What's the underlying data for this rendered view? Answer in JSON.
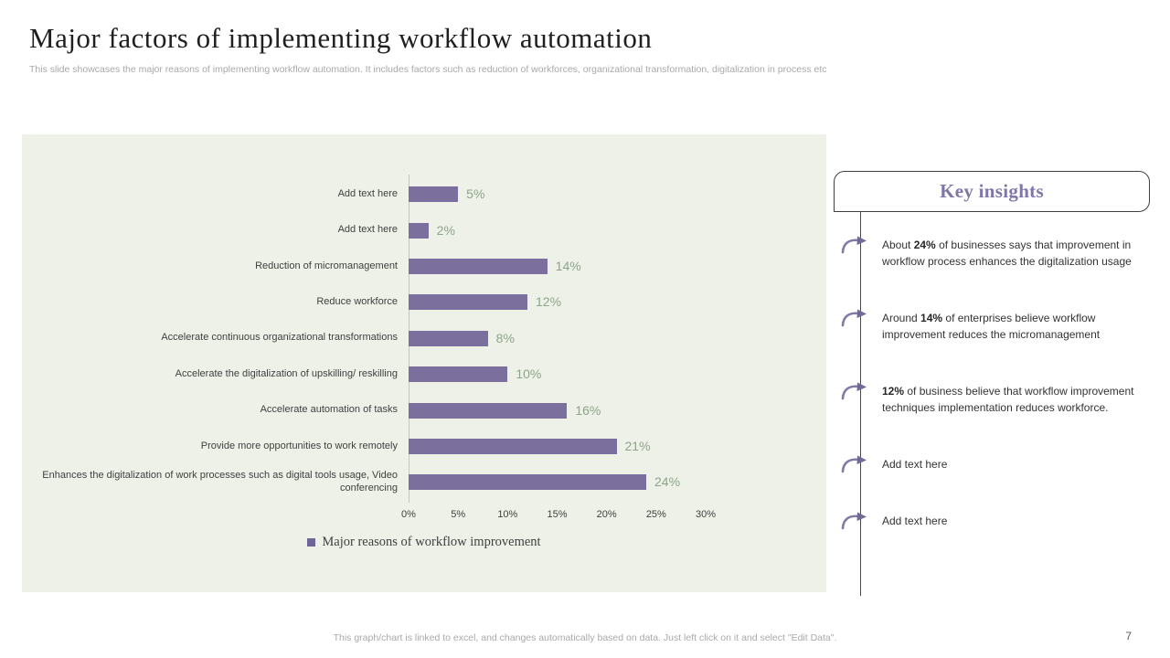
{
  "slide": {
    "title": "Major factors of implementing workflow automation",
    "subtitle": "This slide showcases the major reasons of implementing workflow automation. It includes factors such as reduction of workforces, organizational transformation, digitalization in process etc",
    "footer_note": "This graph/chart is linked to excel, and changes automatically based on data. Just left click on it and select \"Edit Data\".",
    "page_number": "7"
  },
  "chart_data": {
    "type": "bar",
    "orientation": "horizontal",
    "title": "",
    "legend": "Major reasons of workflow improvement",
    "legend_position": "bottom",
    "grid": false,
    "categories": [
      "Add text here",
      "Add text here",
      "Reduction of micromanagement",
      "Reduce workforce",
      "Accelerate continuous organizational transformations",
      "Accelerate the digitalization of upskilling/ reskilling",
      "Accelerate automation of tasks",
      "Provide more opportunities to work remotely",
      "Enhances the digitalization of work processes such as digital tools usage, Video conferencing"
    ],
    "values": [
      5,
      2,
      14,
      12,
      8,
      10,
      16,
      21,
      24
    ],
    "value_labels": [
      "5%",
      "2%",
      "14%",
      "12%",
      "8%",
      "10%",
      "16%",
      "21%",
      "24%"
    ],
    "x_ticks": [
      "0%",
      "5%",
      "10%",
      "15%",
      "20%",
      "25%",
      "30%"
    ],
    "xlim": [
      0,
      30
    ],
    "colors": {
      "bar": "#7b6f9d",
      "legend_swatch": "#6f6697",
      "value_label": "#8da489",
      "panel_background": "#eef1e8",
      "axis_line": "#c4c6bf"
    }
  },
  "key_insights": {
    "title": "Key insights",
    "accent_color": "#8176a8",
    "items": [
      {
        "prefix": "About ",
        "bold": "24%",
        "suffix": " of businesses says that improvement in workflow process enhances the digitalization usage"
      },
      {
        "prefix": "Around ",
        "bold": "14%",
        "suffix": " of enterprises believe workflow improvement reduces the micromanagement"
      },
      {
        "prefix": "",
        "bold": "12%",
        "suffix": " of business believe that workflow improvement techniques implementation reduces workforce."
      },
      {
        "prefix": "Add text here",
        "bold": "",
        "suffix": ""
      },
      {
        "prefix": "Add text here",
        "bold": "",
        "suffix": ""
      }
    ]
  }
}
